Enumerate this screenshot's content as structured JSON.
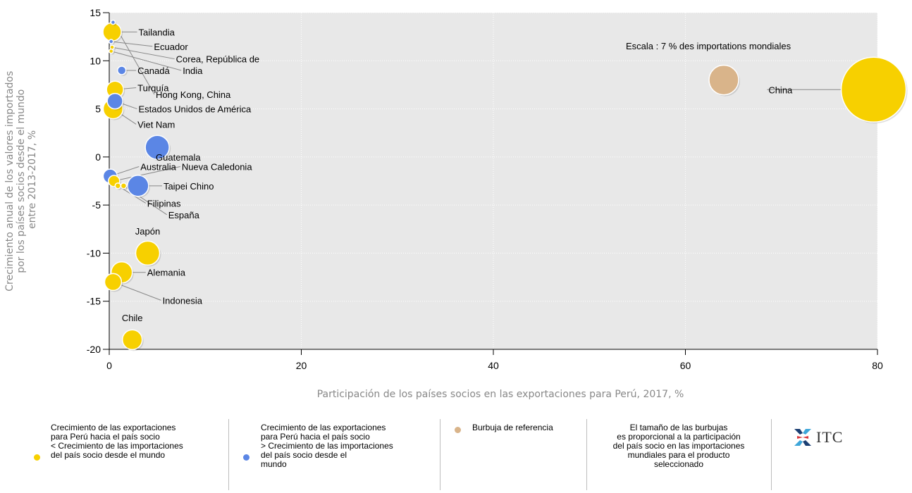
{
  "chart_data": {
    "type": "bubble",
    "xlabel": "Participación de los países socios en las exportaciones para Perú, 2017, %",
    "ylabel_lines": [
      "Crecimiento anual de los valores importados",
      "por los países socios desde el mundo",
      "entre 2013-2017, %"
    ],
    "xlim": [
      0,
      80
    ],
    "ylim": [
      -20,
      15
    ],
    "x_ticks": [
      0,
      20,
      40,
      60,
      80
    ],
    "y_ticks": [
      15,
      10,
      5,
      0,
      -5,
      -10,
      -15,
      -20
    ],
    "grid": true,
    "scale_note": "Escala : 7 % des importations mondiales",
    "colors": {
      "yellow": "#f7d000",
      "blue": "#5b86e5",
      "reference": "#d9b48a",
      "plot_bg": "#e8e8e8",
      "grid": "#ffffff"
    },
    "points": [
      {
        "name": "China",
        "x": 79.6,
        "y": 7,
        "size": 46,
        "color": "yellow",
        "label_x": 68.5,
        "label_y": 7
      },
      {
        "name": "Tailandia",
        "x": 0.3,
        "y": 13,
        "size": 13,
        "color": "yellow",
        "label_x": 2.9,
        "label_y": 13
      },
      {
        "name": "Ecuador",
        "x": 0.2,
        "y": 12,
        "size": 3,
        "color": "blue",
        "label_x": 4.5,
        "label_y": 11.5
      },
      {
        "name": "Corea, República de",
        "x": 0.3,
        "y": 11.4,
        "size": 3,
        "color": "yellow",
        "label_x": 6.8,
        "label_y": 10.2
      },
      {
        "name": "Canadá",
        "x": 1.3,
        "y": 9,
        "size": 6,
        "color": "blue",
        "label_x": 2.8,
        "label_y": 9
      },
      {
        "name": "India",
        "x": 0.2,
        "y": 11,
        "size": 3,
        "color": "yellow",
        "label_x": 7.5,
        "label_y": 9
      },
      {
        "name": "Turquía",
        "x": 0.6,
        "y": 7,
        "size": 12,
        "color": "yellow",
        "label_x": 2.8,
        "label_y": 7.2
      },
      {
        "name": "Hong Kong, China",
        "x": 0.4,
        "y": 14,
        "size": 3,
        "color": "blue",
        "label_x": 4.7,
        "label_y": 6.5
      },
      {
        "name": "Estados Unidos de América",
        "x": 0.6,
        "y": 5.8,
        "size": 11,
        "color": "blue",
        "label_x": 2.9,
        "label_y": 5
      },
      {
        "name": "Viet Nam",
        "x": 0.4,
        "y": 5,
        "size": 14,
        "color": "yellow",
        "label_x": 2.8,
        "label_y": 3.4
      },
      {
        "name": "Guatemala",
        "x": 5,
        "y": 1,
        "size": 17,
        "color": "blue",
        "label_x": 4.7,
        "label_y": 0
      },
      {
        "name": "Australia",
        "x": 0.1,
        "y": -2,
        "size": 10,
        "color": "blue",
        "label_x": 3.1,
        "label_y": -1
      },
      {
        "name": "Nueva Caledonia",
        "x": 0.5,
        "y": -2.5,
        "size": 8,
        "color": "yellow",
        "label_x": 7.4,
        "label_y": -1
      },
      {
        "name": "Taipei Chino",
        "x": 3,
        "y": -3,
        "size": 15,
        "color": "blue",
        "label_x": 5.5,
        "label_y": -3
      },
      {
        "name": "Filipinas",
        "x": 0.9,
        "y": -3,
        "size": 4,
        "color": "yellow",
        "label_x": 3.8,
        "label_y": -4.8
      },
      {
        "name": "España",
        "x": 1.5,
        "y": -3,
        "size": 4,
        "color": "yellow",
        "label_x": 6.0,
        "label_y": -6
      },
      {
        "name": "Japón",
        "x": 4,
        "y": -10,
        "size": 17,
        "color": "yellow",
        "label_x": 4,
        "label_y": -7.7
      },
      {
        "name": "Alemania",
        "x": 1.3,
        "y": -12,
        "size": 15,
        "color": "yellow",
        "label_x": 3.8,
        "label_y": -12
      },
      {
        "name": "Indonesia",
        "x": 0.4,
        "y": -13,
        "size": 12,
        "color": "yellow",
        "label_x": 5.4,
        "label_y": -14.9
      },
      {
        "name": "Chile",
        "x": 2.4,
        "y": -19,
        "size": 14,
        "color": "yellow",
        "label_x": 2.4,
        "label_y": -16.7
      },
      {
        "name": "",
        "x": 64,
        "y": 8,
        "size": 21,
        "color": "reference",
        "label_x": 64,
        "label_y": 8
      }
    ]
  },
  "legend": {
    "yellow": "Crecimiento de las exportaciones\npara Perú hacia el país socio\n< Crecimiento de las importaciones\ndel país socio desde el mundo",
    "blue": "Crecimiento de las exportaciones\npara Perú hacia el país socio\n> Crecimiento de las importaciones\ndel país socio  desde el\nmundo",
    "reference": "Burbuja de referencia",
    "size_note": "El tamaño de las burbujas\nes proporcional a la participación\ndel país socio en las importaciones\nmundiales para el producto\nseleccionado",
    "logo_text": "ITC"
  }
}
